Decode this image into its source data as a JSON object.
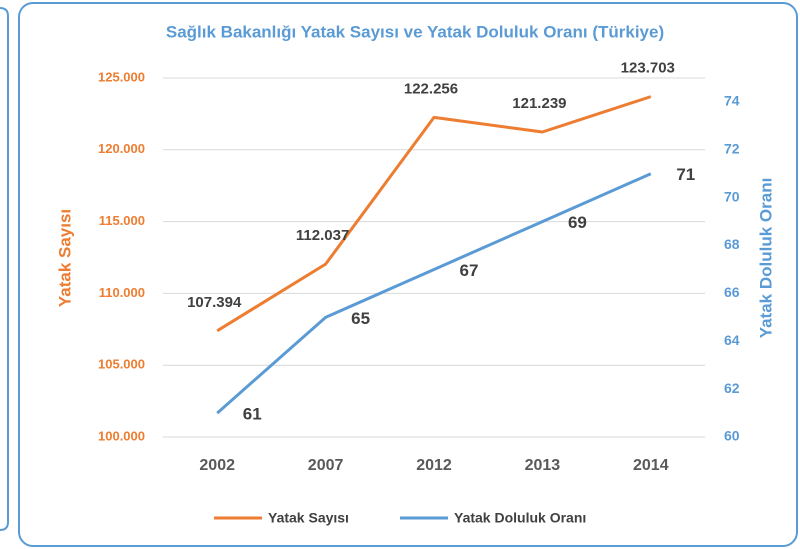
{
  "chart_data": {
    "type": "line",
    "title": "Sağlık Bakanlığı Yatak Sayısı ve Yatak Doluluk Oranı (Türkiye)",
    "y_label": "Yatak Sayısı",
    "y2_label": "Yatak Doluluk Oranı",
    "categories": [
      "2002",
      "2007",
      "2012",
      "2013",
      "2014"
    ],
    "series": [
      {
        "name": "Yatak Sayısı",
        "color": "#ed7d31",
        "axis": "y",
        "values": [
          107394,
          112037,
          122256,
          121239,
          123703
        ],
        "value_labels": [
          "107.394",
          "112.037",
          "122.256",
          "121.239",
          "123.703"
        ]
      },
      {
        "name": "Yatak Doluluk Oranı",
        "color": "#5b9bd5",
        "axis": "y2",
        "values": [
          61,
          65,
          67,
          69,
          71
        ]
      }
    ],
    "ylim": [
      100000,
      125000
    ],
    "yticks": [
      {
        "value": 100000,
        "label": "100.000"
      },
      {
        "value": 105000,
        "label": "105.000"
      },
      {
        "value": 110000,
        "label": "110.000"
      },
      {
        "value": 115000,
        "label": "115.000"
      },
      {
        "value": 120000,
        "label": "120.000"
      },
      {
        "value": 125000,
        "label": "125.000"
      }
    ],
    "y2lim": [
      60,
      75
    ],
    "y2ticks": [
      60,
      62,
      64,
      66,
      68,
      70,
      72,
      74
    ],
    "grid": true,
    "legend": "bottom"
  }
}
